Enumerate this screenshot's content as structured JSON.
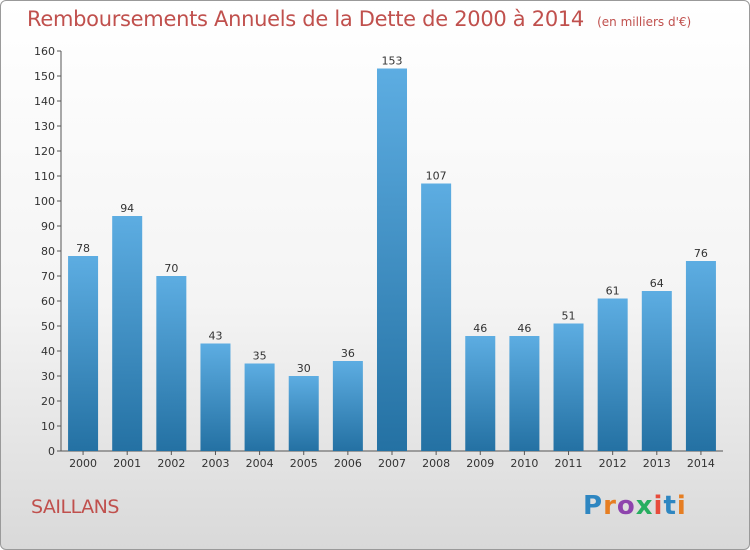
{
  "chart_data": {
    "type": "bar",
    "title": "Remboursements Annuels de la Dette de 2000 à 2014",
    "subtitle": "(en milliers d'€)",
    "categories": [
      "2000",
      "2001",
      "2002",
      "2003",
      "2004",
      "2005",
      "2006",
      "2007",
      "2008",
      "2009",
      "2010",
      "2011",
      "2012",
      "2013",
      "2014"
    ],
    "values": [
      78,
      94,
      70,
      43,
      35,
      30,
      36,
      153,
      107,
      46,
      46,
      51,
      61,
      64,
      76
    ],
    "ylim": [
      0,
      160
    ],
    "ytick_step": 10,
    "xlabel": "",
    "ylabel": "",
    "grid": false
  },
  "footer": {
    "commune": "SAILLANS",
    "logo": "Proxiti"
  },
  "colors": {
    "bar_light": "#5dade2",
    "bar_dark": "#2471a3",
    "title": "#c0504d"
  }
}
